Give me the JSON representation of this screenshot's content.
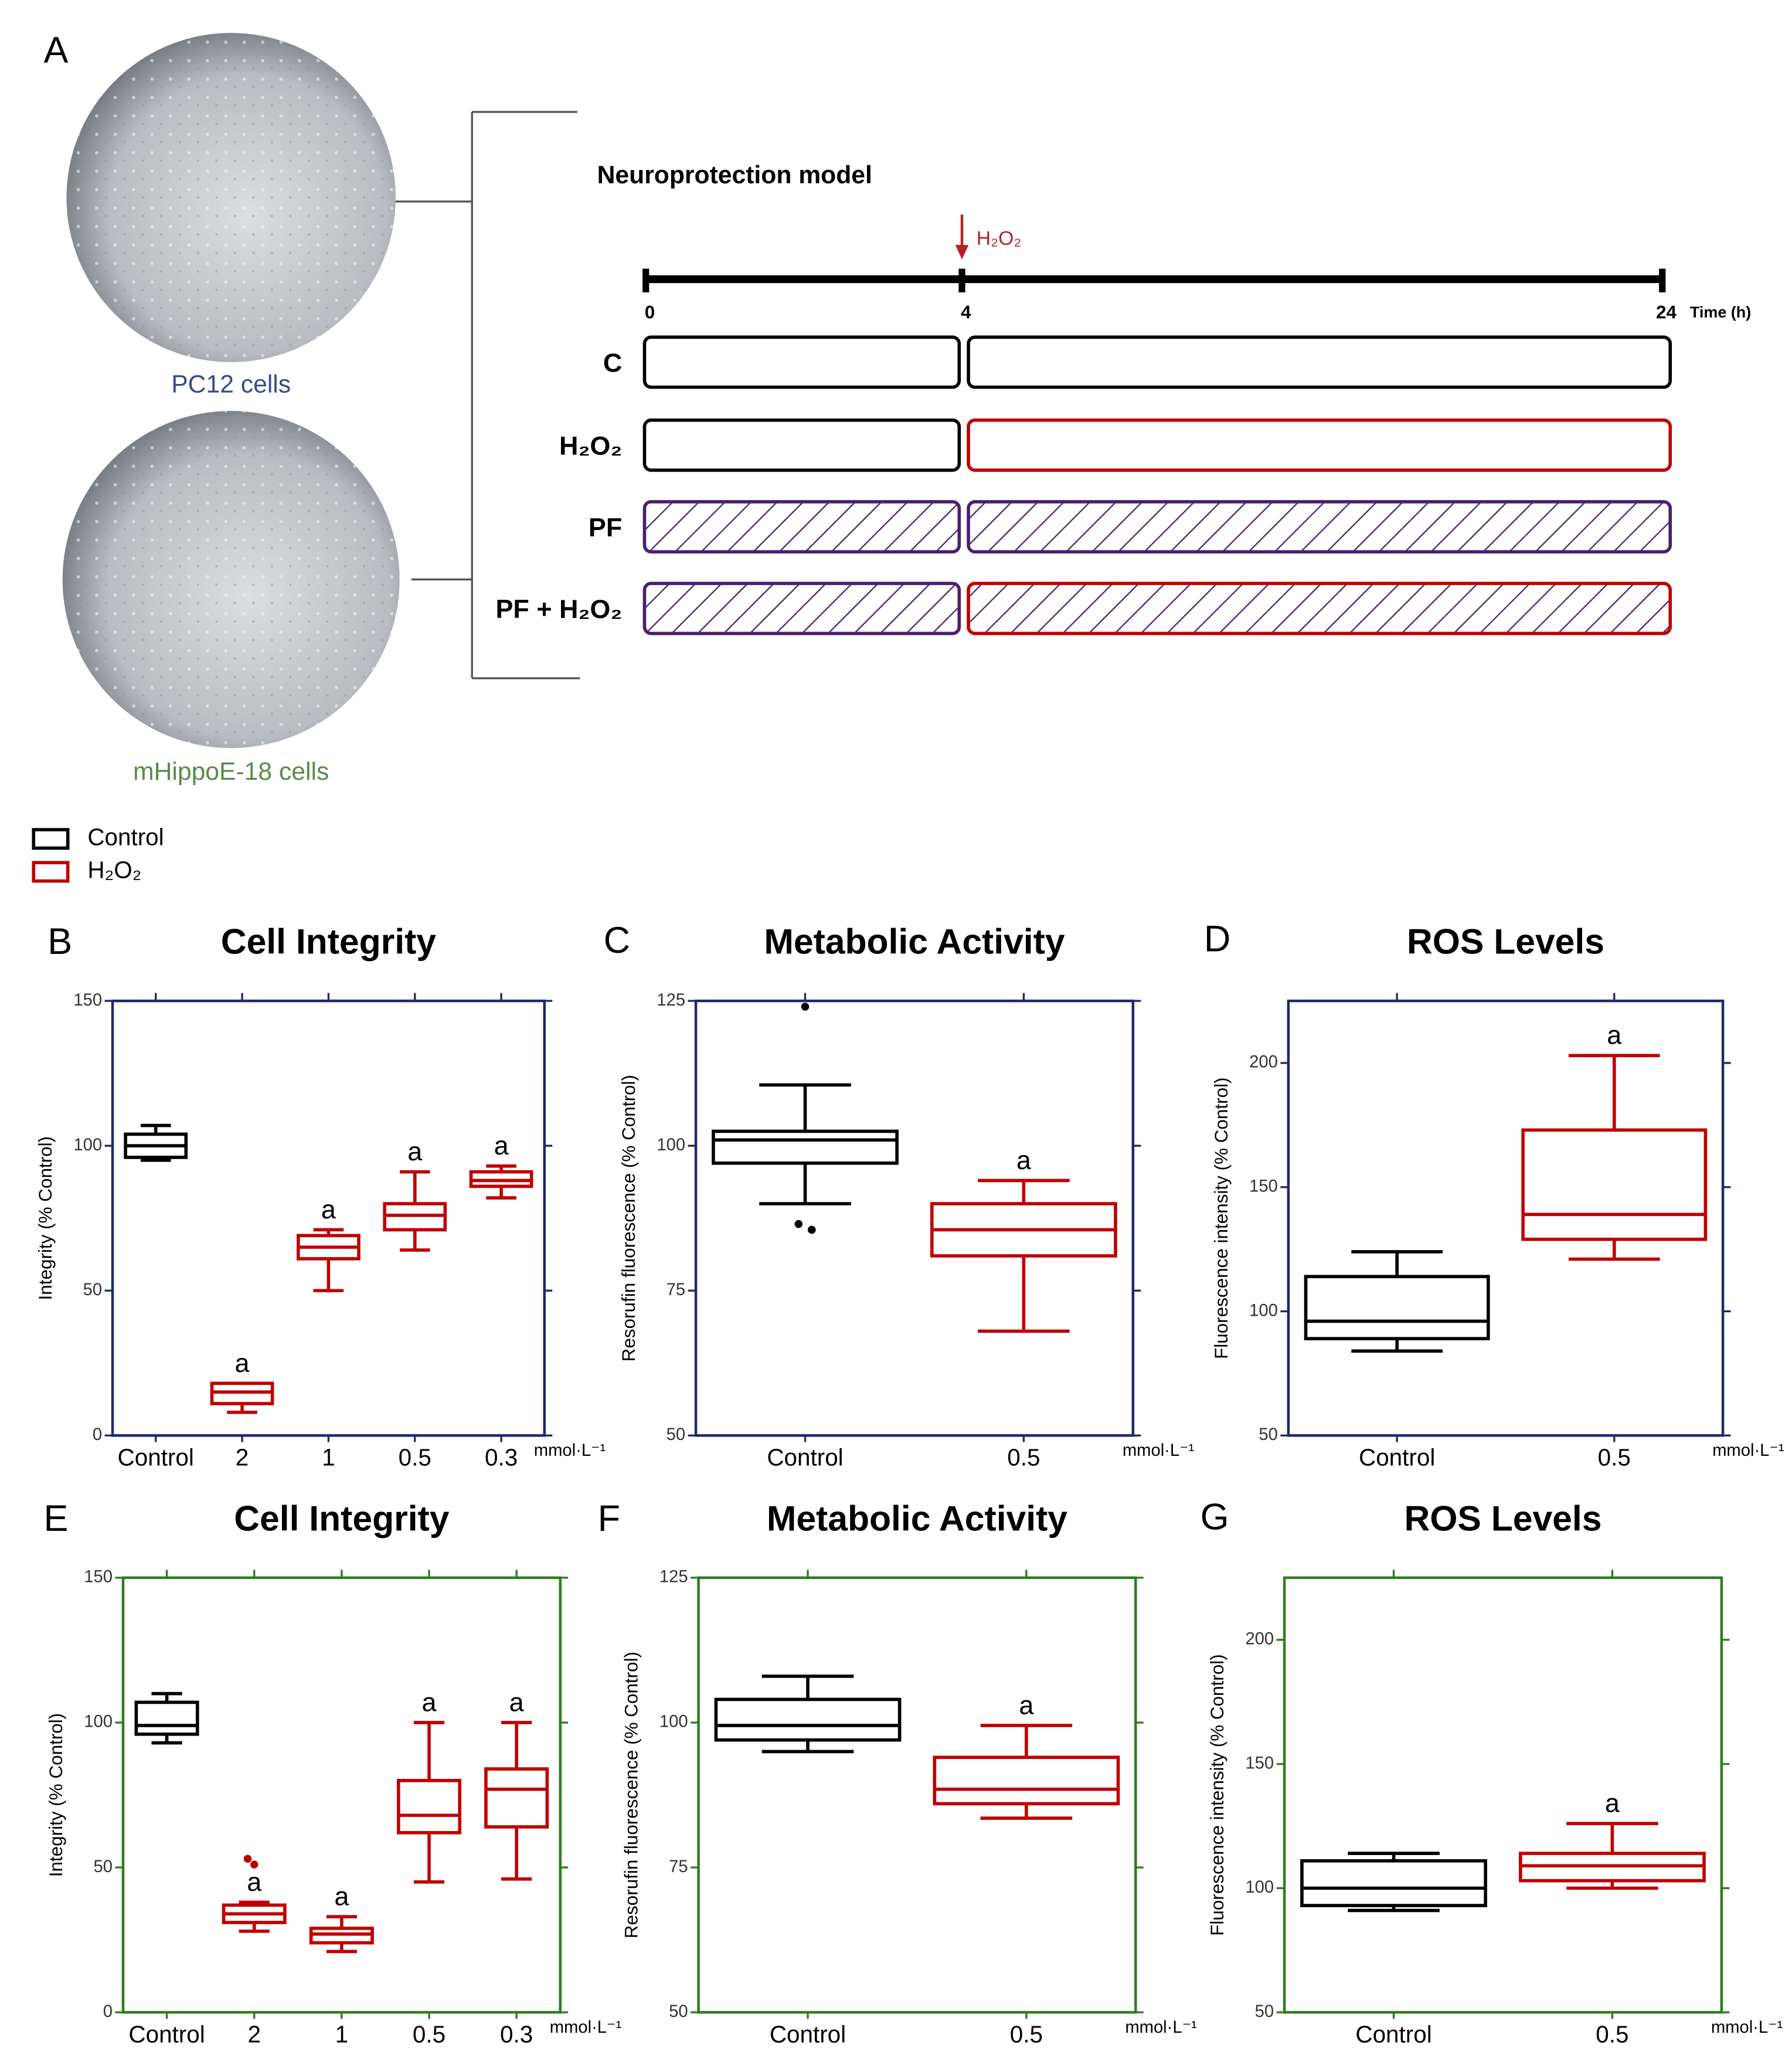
{
  "panel_labels": [
    "A",
    "B",
    "C",
    "D",
    "E",
    "F",
    "G"
  ],
  "diagram": {
    "cells": [
      {
        "label": "PC12 cells",
        "color": "#3a4a8c"
      },
      {
        "label": "mHippoE-18 cells",
        "color": "#5a8a4a"
      }
    ],
    "title": "Neuroprotection model",
    "arrow_label": "H₂O₂",
    "arrow_color": "#b22222",
    "time_ticks": [
      0,
      4,
      24
    ],
    "time_label": "Time (h)",
    "rows": [
      {
        "label": "C",
        "phases": [
          {
            "color": "#000000",
            "hatch": false
          },
          {
            "color": "#000000",
            "hatch": false
          }
        ]
      },
      {
        "label": "H₂O₂",
        "phases": [
          {
            "color": "#000000",
            "hatch": false
          },
          {
            "color": "#c00000",
            "hatch": false
          }
        ]
      },
      {
        "label": "PF",
        "phases": [
          {
            "color": "#4b1f6f",
            "hatch": true
          },
          {
            "color": "#4b1f6f",
            "hatch": true
          }
        ]
      },
      {
        "label": "PF + H₂O₂",
        "phases": [
          {
            "color": "#4b1f6f",
            "hatch": true
          },
          {
            "color": "#c00000",
            "hatch": true
          }
        ]
      }
    ],
    "hatch_color": "#4b1f6f"
  },
  "legend": [
    {
      "name": "Control",
      "color": "#000000"
    },
    {
      "name": "H₂O₂",
      "color": "#c00000"
    }
  ],
  "chart_data": [
    {
      "type": "box",
      "title": "Cell Integrity",
      "ylabel": "Integrity (% Control)",
      "unit_label": "mmol·L⁻¹",
      "categories": [
        "Control",
        "2",
        "1",
        "0.5",
        "0.3"
      ],
      "ylim": [
        0,
        150
      ],
      "yticks": [
        0,
        50,
        100,
        150
      ],
      "axis_color": "#1f2a6b",
      "colors": [
        "#000000",
        "#c00000",
        "#c00000",
        "#c00000",
        "#c00000"
      ],
      "boxes": [
        {
          "low": 95,
          "q1": 96,
          "median": 100,
          "q3": 104,
          "high": 107
        },
        {
          "low": 8,
          "q1": 11,
          "median": 15,
          "q3": 18,
          "high": 18
        },
        {
          "low": 50,
          "q1": 61,
          "median": 65,
          "q3": 69,
          "high": 71
        },
        {
          "low": 64,
          "q1": 71,
          "median": 76,
          "q3": 80,
          "high": 91
        },
        {
          "low": 82,
          "q1": 86,
          "median": 88,
          "q3": 91,
          "high": 93
        }
      ],
      "annotations": [
        null,
        "a",
        "a",
        "a",
        "a"
      ]
    },
    {
      "type": "box",
      "title": "Metabolic Activity",
      "ylabel": "Resorufin fluorescence (% Control)",
      "unit_label": "mmol·L⁻¹",
      "categories": [
        "Control",
        "0.5"
      ],
      "ylim": [
        50,
        125
      ],
      "yticks": [
        50,
        75,
        100,
        125
      ],
      "axis_color": "#1f2a6b",
      "colors": [
        "#000000",
        "#c00000"
      ],
      "boxes": [
        {
          "low": 90,
          "q1": 97,
          "median": 101,
          "q3": 102.5,
          "high": 110.5,
          "outliers": [
            124,
            86.5,
            85.5,
            85.5
          ]
        },
        {
          "low": 68,
          "q1": 81,
          "median": 85.5,
          "q3": 90,
          "high": 94
        }
      ],
      "annotations": [
        null,
        "a"
      ]
    },
    {
      "type": "box",
      "title": "ROS Levels",
      "ylabel": "Fluorescence intensity (% Control)",
      "unit_label": "mmol·L⁻¹",
      "categories": [
        "Control",
        "0.5"
      ],
      "ylim": [
        50,
        225
      ],
      "yticks": [
        50,
        100,
        150,
        200
      ],
      "axis_color": "#1f2a6b",
      "colors": [
        "#000000",
        "#c00000"
      ],
      "boxes": [
        {
          "low": 84,
          "q1": 89,
          "median": 96,
          "q3": 114,
          "high": 124
        },
        {
          "low": 121,
          "q1": 129,
          "median": 139,
          "q3": 173,
          "high": 203
        }
      ],
      "annotations": [
        null,
        "a"
      ]
    },
    {
      "type": "box",
      "title": "Cell Integrity",
      "ylabel": "Integrity (% Control)",
      "unit_label": "mmol·L⁻¹",
      "categories": [
        "Control",
        "2",
        "1",
        "0.5",
        "0.3"
      ],
      "ylim": [
        0,
        150
      ],
      "yticks": [
        0,
        50,
        100,
        150
      ],
      "axis_color": "#2e7d1e",
      "colors": [
        "#000000",
        "#c00000",
        "#c00000",
        "#c00000",
        "#c00000"
      ],
      "boxes": [
        {
          "low": 93,
          "q1": 96,
          "median": 99,
          "q3": 107,
          "high": 110
        },
        {
          "low": 28,
          "q1": 31,
          "median": 34,
          "q3": 37,
          "high": 38,
          "outliers": [
            51,
            53
          ]
        },
        {
          "low": 21,
          "q1": 24,
          "median": 27,
          "q3": 29,
          "high": 33
        },
        {
          "low": 45,
          "q1": 62,
          "median": 68,
          "q3": 80,
          "high": 100
        },
        {
          "low": 46,
          "q1": 64,
          "median": 77,
          "q3": 84,
          "high": 100
        }
      ],
      "annotations": [
        null,
        "a",
        "a",
        "a",
        "a"
      ]
    },
    {
      "type": "box",
      "title": "Metabolic Activity",
      "ylabel": "Resorufin fluorescence (% Control)",
      "unit_label": "mmol·L⁻¹",
      "categories": [
        "Control",
        "0.5"
      ],
      "ylim": [
        50,
        125
      ],
      "yticks": [
        50,
        75,
        100,
        125
      ],
      "axis_color": "#2e7d1e",
      "colors": [
        "#000000",
        "#c00000"
      ],
      "boxes": [
        {
          "low": 95,
          "q1": 97,
          "median": 99.5,
          "q3": 104,
          "high": 108
        },
        {
          "low": 83.5,
          "q1": 86,
          "median": 88.5,
          "q3": 94,
          "high": 99.5
        }
      ],
      "annotations": [
        null,
        "a"
      ]
    },
    {
      "type": "box",
      "title": "ROS Levels",
      "ylabel": "Fluorescence intensity (% Control)",
      "unit_label": "mmol·L⁻¹",
      "categories": [
        "Control",
        "0.5"
      ],
      "ylim": [
        50,
        225
      ],
      "yticks": [
        50,
        100,
        150,
        200
      ],
      "axis_color": "#2e7d1e",
      "colors": [
        "#000000",
        "#c00000"
      ],
      "boxes": [
        {
          "low": 91,
          "q1": 93,
          "median": 100,
          "q3": 111,
          "high": 114
        },
        {
          "low": 100,
          "q1": 103,
          "median": 109,
          "q3": 114,
          "high": 126
        }
      ],
      "annotations": [
        null,
        "a"
      ]
    }
  ]
}
